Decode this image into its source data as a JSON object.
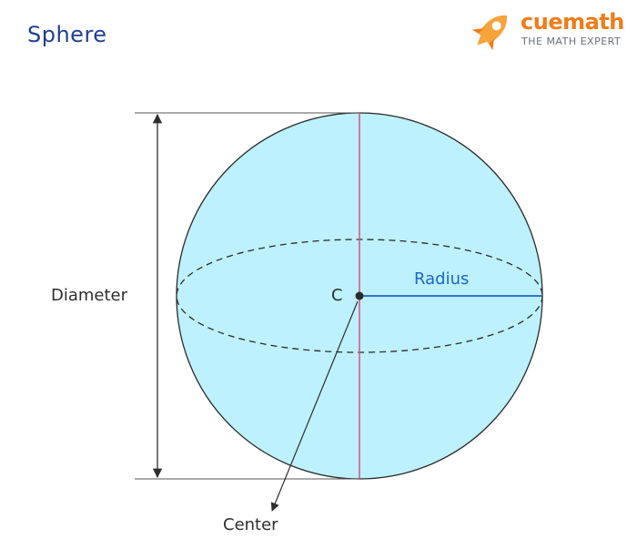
{
  "title": "Sphere",
  "logo": {
    "brand": "cuemath",
    "tagline": "THE MATH EXPERT",
    "icon": "rocket-icon",
    "brand_color": "#f07c1b",
    "tagline_color": "#6b7077"
  },
  "labels": {
    "diameter": "Diameter",
    "radius": "Radius",
    "center_point": "C",
    "center": "Center"
  },
  "colors": {
    "sphere_fill": "#bdf1fd",
    "diameter_line": "#e4507a",
    "radius_line": "#1b65c9",
    "title": "#1f3f8f"
  }
}
